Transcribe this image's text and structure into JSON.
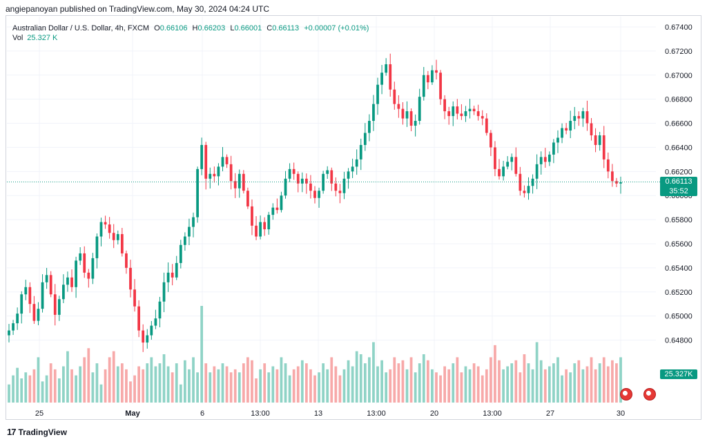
{
  "header": {
    "published_by": "angiepanoyan published on TradingView.com, May 30, 2024 04:24 UTC"
  },
  "legend": {
    "symbol": "Australian Dollar / U.S. Dollar, 4h, FXCM",
    "o_label": "O",
    "o_value": "0.66106",
    "h_label": "H",
    "h_value": "0.66203",
    "l_label": "L",
    "l_value": "0.66001",
    "c_label": "C",
    "c_value": "0.66113",
    "change": "+0.00007 (+0.01%)",
    "vol_label": "Vol",
    "vol_value": "25.327 K"
  },
  "price_tag": {
    "price": "0.66113",
    "countdown": "35:52"
  },
  "vol_tag": "25.327K",
  "footer": {
    "brand": "TradingView",
    "logo": "17"
  },
  "colors": {
    "up": "#089981",
    "down": "#f23645",
    "up_vol": "#8fd3c6",
    "down_vol": "#f7a9a9",
    "grid": "#f0f3fa"
  },
  "chart_data": {
    "type": "candlestick",
    "y_ticks": [
      "0.67400",
      "0.67200",
      "0.67000",
      "0.66800",
      "0.66600",
      "0.66400",
      "0.66200",
      "0.66000",
      "0.65800",
      "0.65600",
      "0.65400",
      "0.65200",
      "0.65000",
      "0.64800"
    ],
    "x_ticks": [
      "25",
      "May",
      "6",
      "13:00",
      "13",
      "13:00",
      "20",
      "13:00",
      "27",
      "30"
    ],
    "ylim": [
      0.647,
      0.6744
    ],
    "current_price": 0.66113,
    "closes": [
      0.6488,
      0.6494,
      0.6502,
      0.6518,
      0.6524,
      0.651,
      0.6496,
      0.6506,
      0.6528,
      0.6534,
      0.6518,
      0.6501,
      0.6514,
      0.6526,
      0.6532,
      0.6524,
      0.6546,
      0.6552,
      0.6536,
      0.6531,
      0.6548,
      0.6566,
      0.6578,
      0.6576,
      0.6569,
      0.6563,
      0.6568,
      0.6552,
      0.654,
      0.6522,
      0.6508,
      0.6488,
      0.6478,
      0.6484,
      0.6492,
      0.6498,
      0.6512,
      0.6528,
      0.6536,
      0.6532,
      0.6544,
      0.6559,
      0.6566,
      0.6574,
      0.6582,
      0.6622,
      0.6642,
      0.6614,
      0.6618,
      0.6616,
      0.6624,
      0.6632,
      0.6626,
      0.6612,
      0.6606,
      0.6618,
      0.6604,
      0.6591,
      0.6575,
      0.6566,
      0.6578,
      0.6572,
      0.6584,
      0.659,
      0.6588,
      0.66,
      0.6614,
      0.6622,
      0.6618,
      0.661,
      0.6614,
      0.661,
      0.6604,
      0.6598,
      0.6604,
      0.6618,
      0.6621,
      0.661,
      0.6604,
      0.6602,
      0.6614,
      0.662,
      0.6624,
      0.663,
      0.6642,
      0.6652,
      0.6662,
      0.6676,
      0.6692,
      0.6702,
      0.6709,
      0.6688,
      0.6676,
      0.6672,
      0.6664,
      0.667,
      0.6658,
      0.6662,
      0.6682,
      0.67,
      0.6694,
      0.6704,
      0.6702,
      0.668,
      0.667,
      0.6666,
      0.6674,
      0.6668,
      0.6666,
      0.667,
      0.6672,
      0.667,
      0.6666,
      0.6664,
      0.6652,
      0.664,
      0.6622,
      0.6616,
      0.6624,
      0.6628,
      0.6632,
      0.6618,
      0.6604,
      0.6602,
      0.6608,
      0.6614,
      0.6626,
      0.6632,
      0.6628,
      0.6634,
      0.6644,
      0.6648,
      0.6656,
      0.6654,
      0.6662,
      0.6666,
      0.6664,
      0.667,
      0.666,
      0.665,
      0.6642,
      0.665,
      0.663,
      0.662,
      0.6612,
      0.661,
      0.6611
    ],
    "volumes": [
      12,
      18,
      23,
      16,
      20,
      18,
      22,
      30,
      14,
      18,
      26,
      22,
      16,
      24,
      34,
      22,
      18,
      24,
      30,
      36,
      20,
      26,
      12,
      22,
      30,
      34,
      24,
      26,
      22,
      14,
      18,
      24,
      22,
      26,
      30,
      24,
      26,
      32,
      24,
      20,
      26,
      12,
      28,
      22,
      30,
      20,
      64,
      26,
      20,
      24,
      22,
      26,
      24,
      20,
      22,
      20,
      26,
      30,
      28,
      16,
      22,
      26,
      20,
      24,
      22,
      30,
      26,
      18,
      22,
      24,
      28,
      26,
      22,
      18,
      20,
      26,
      22,
      30,
      24,
      18,
      22,
      28,
      24,
      34,
      32,
      26,
      30,
      40,
      24,
      28,
      20,
      22,
      30,
      26,
      28,
      22,
      30,
      20,
      26,
      32,
      28,
      22,
      20,
      18,
      24,
      22,
      26,
      30,
      20,
      24,
      22,
      26,
      24,
      18,
      22,
      30,
      38,
      28,
      22,
      24,
      26,
      28,
      20,
      32,
      26,
      22,
      40,
      28,
      22,
      24,
      26,
      30,
      18,
      22,
      20,
      26,
      28,
      22,
      24,
      30,
      22,
      26,
      30,
      24,
      28,
      26,
      30
    ]
  }
}
